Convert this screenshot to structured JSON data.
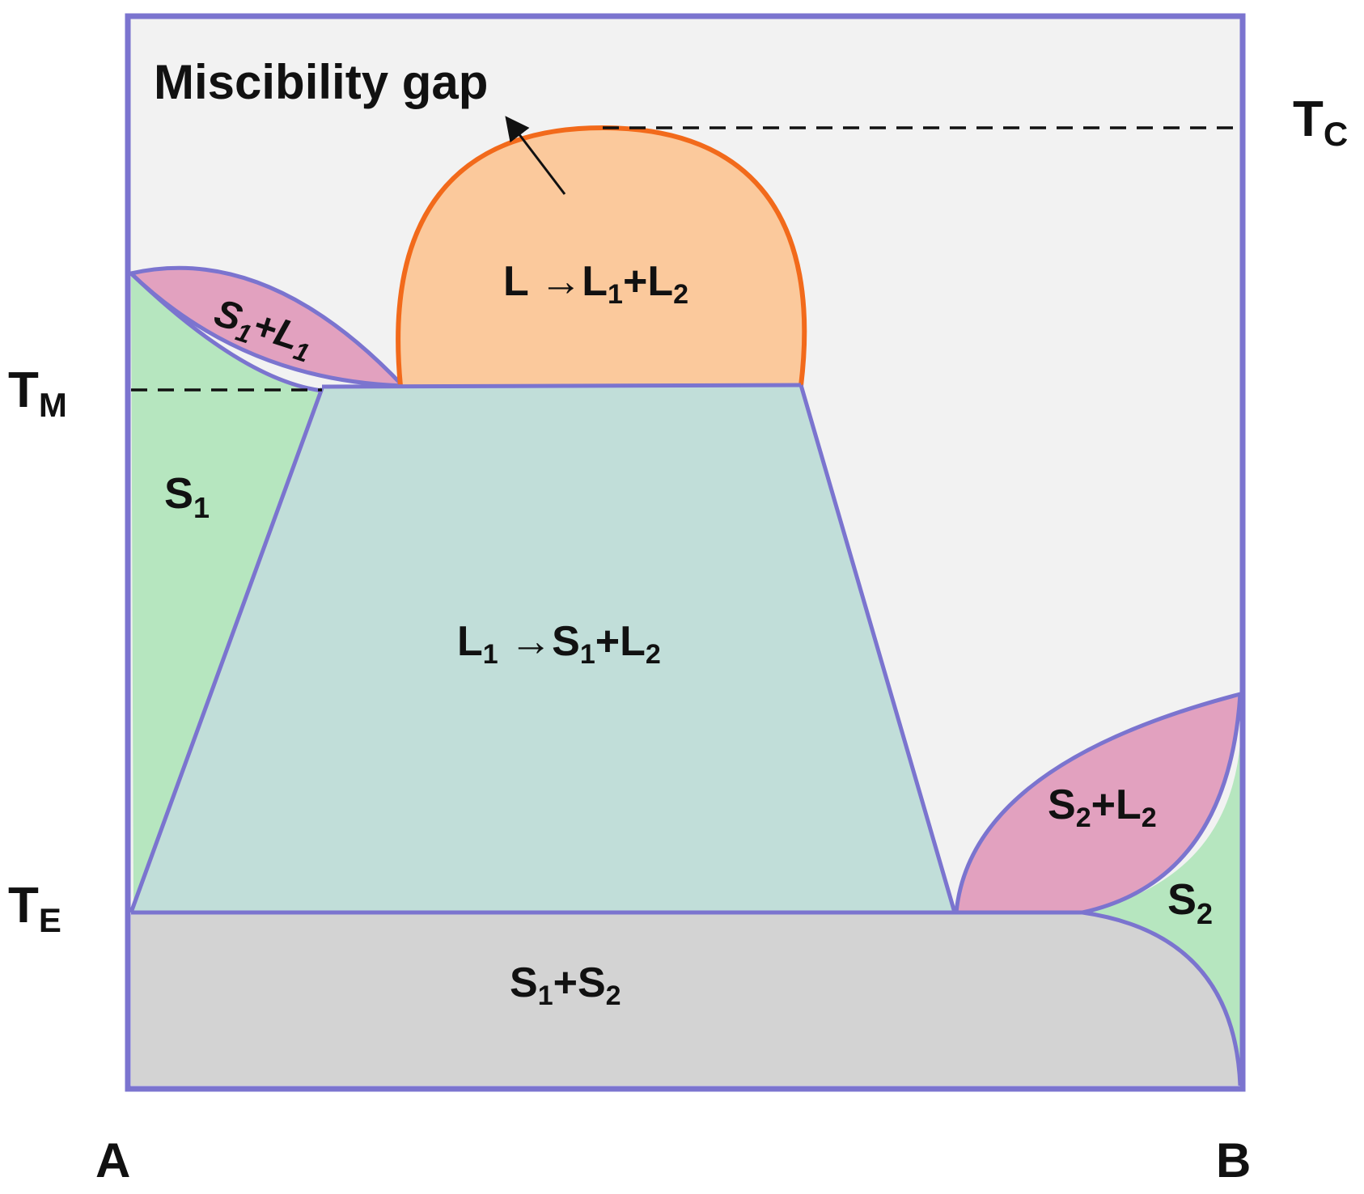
{
  "colors": {
    "frame": "#7b74cf",
    "background": "#f2f2f2",
    "miscibility_gap_fill": "#fbc99c",
    "miscibility_gap_line": "#f26a1b",
    "solid_solution_fill": "#b6e6bf",
    "two_phase_s_l_fill": "#e2a1bf",
    "monotectic_region_fill": "#c1ded9",
    "eutectic_region_fill": "#d3d3d3",
    "text": "#111111"
  },
  "labels": {
    "miscibility_gap": "Miscibility gap",
    "axis_left": "A",
    "axis_right": "B",
    "tc": {
      "main": "T",
      "sub": "C"
    },
    "tm": {
      "main": "T",
      "sub": "M"
    },
    "te": {
      "main": "T",
      "sub": "E"
    }
  },
  "regions": {
    "gap_label": {
      "p1": "L →L",
      "s1": "1",
      "p2": "+L",
      "s2": "2"
    },
    "s1_l1": {
      "p1": "S",
      "s1": "1",
      "p2": "+L",
      "s2": "1"
    },
    "s1": {
      "p1": "S",
      "s1": "1"
    },
    "monotectic": {
      "p1": "L",
      "s1": "1",
      "p2": " →S",
      "s2": "1",
      "p3": "+L",
      "s3": "2"
    },
    "s2_l2": {
      "p1": "S",
      "s1": "2",
      "p2": "+L",
      "s2": "2"
    },
    "s2": {
      "p1": "S",
      "s1": "2"
    },
    "s1_s2": {
      "p1": "S",
      "s1": "1",
      "p2": "+S",
      "s2": "2"
    }
  },
  "icons": {
    "arrow": "arrow-pointer-icon"
  }
}
